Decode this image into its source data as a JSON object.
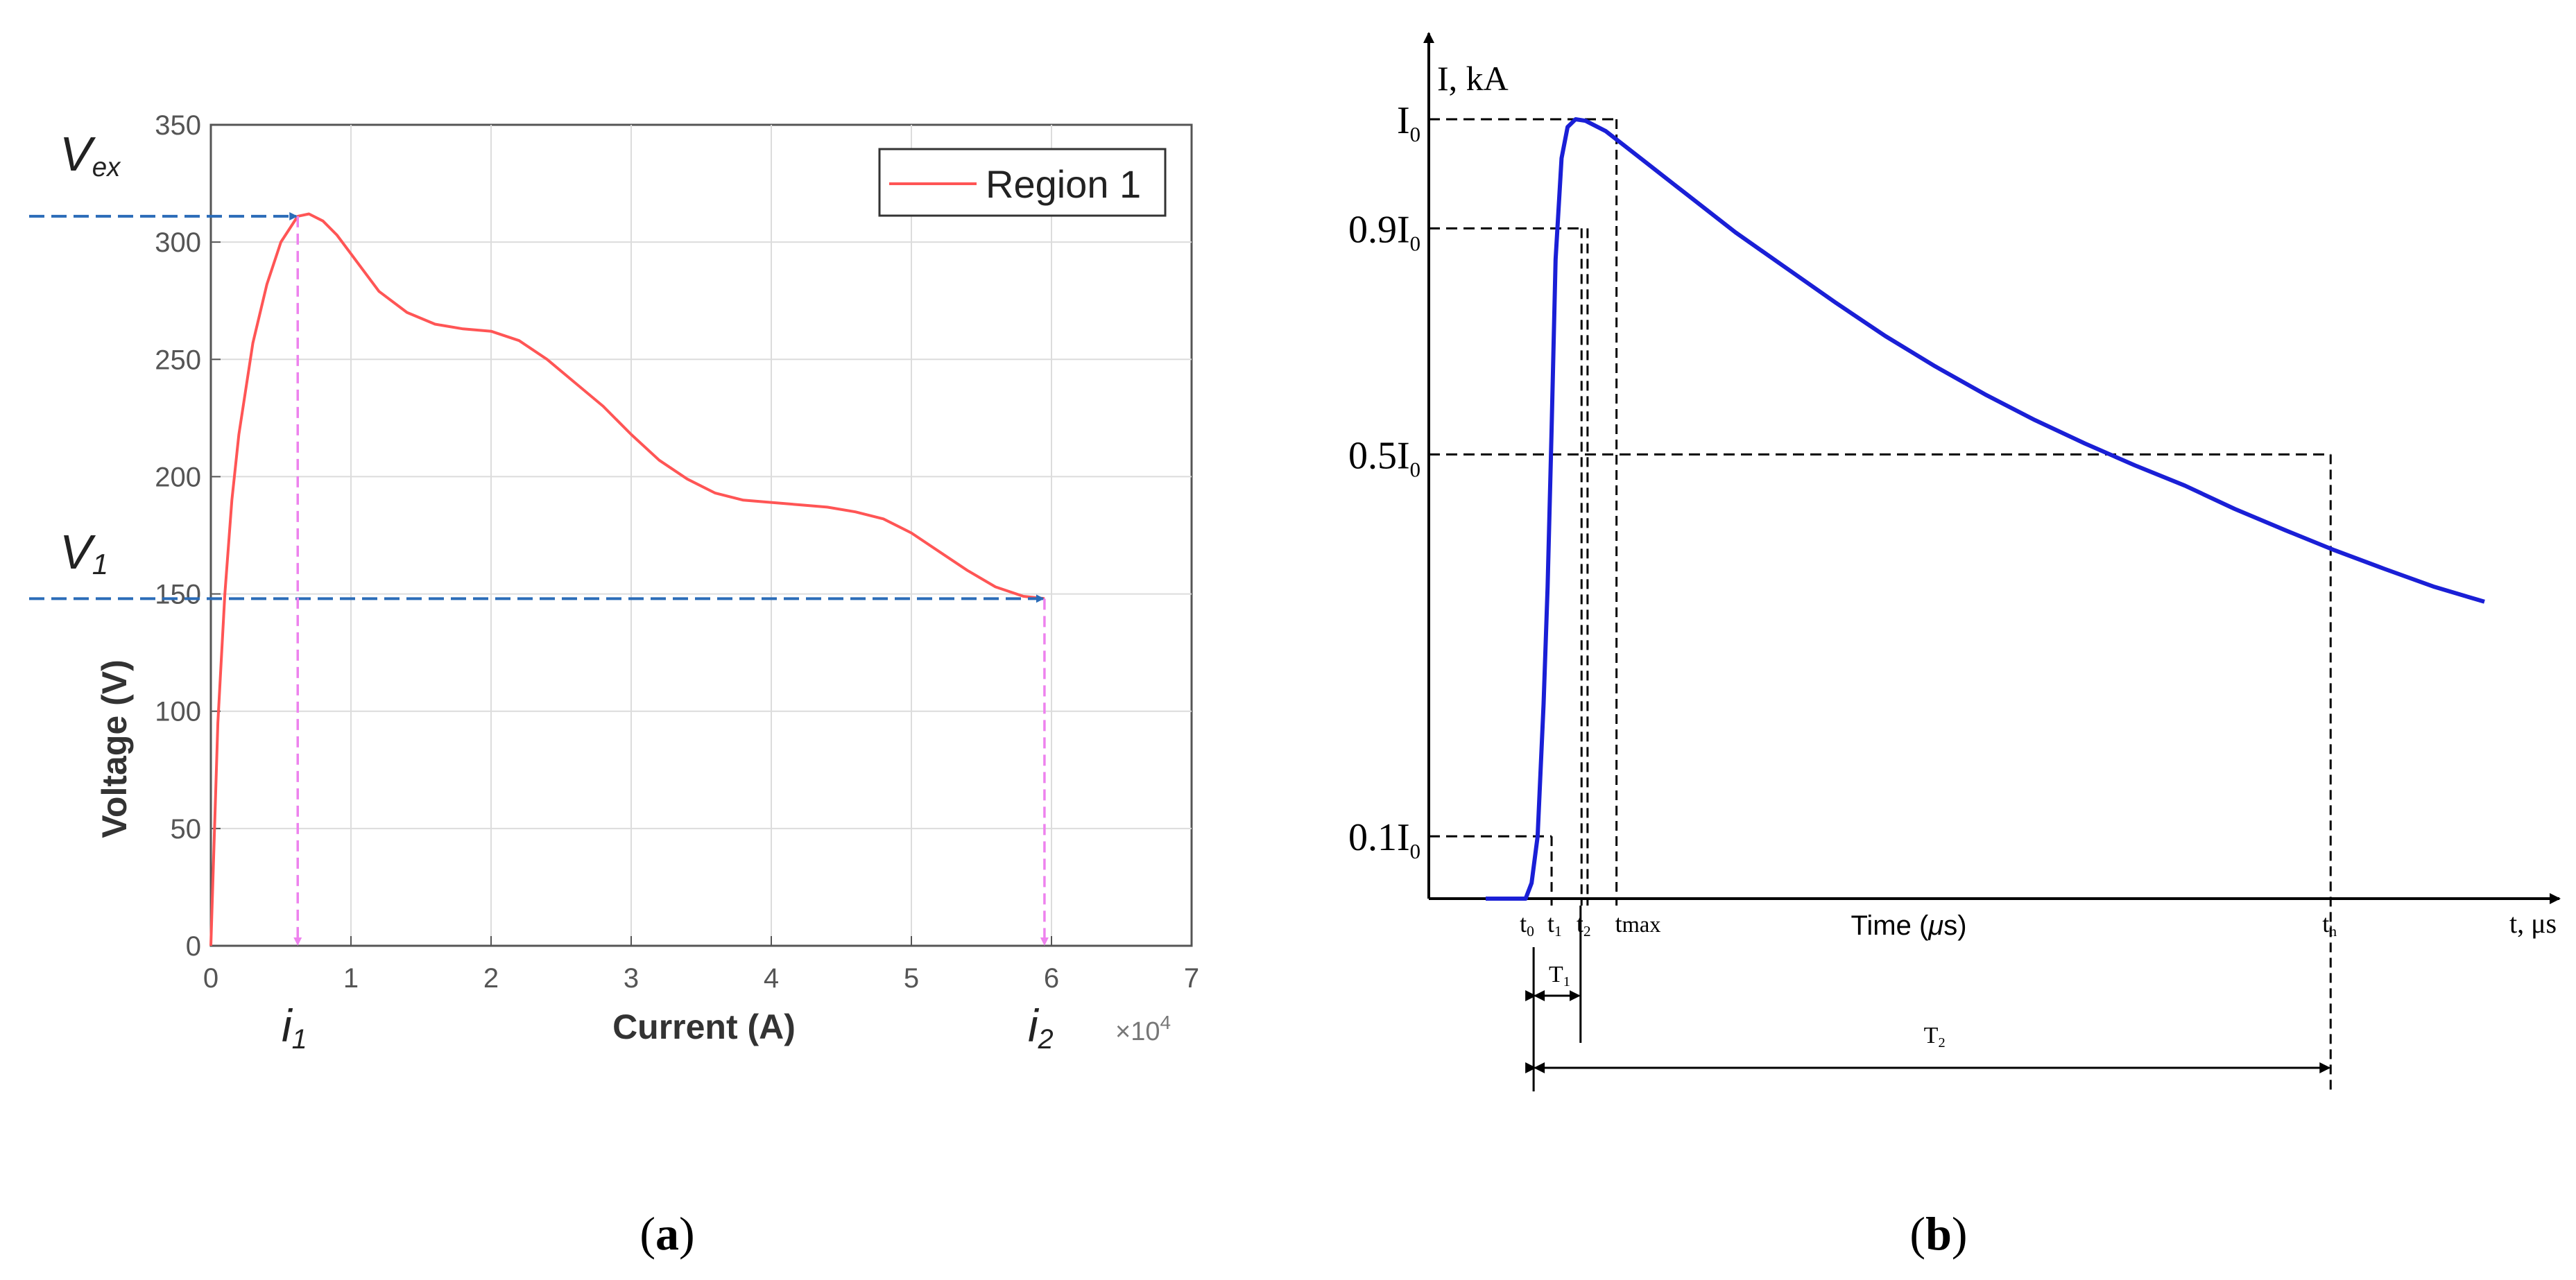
{
  "colors": {
    "curve_a": "#ff5555",
    "arrow_v": "#2b6cb8",
    "arrow_i": "#ee82ee",
    "curve_b": "#1a1fd6",
    "grid": "#dcdcdc",
    "axis": "#333333",
    "black": "#000000"
  },
  "chart_data": [
    {
      "id": "a",
      "type": "line",
      "caption": "a",
      "xlabel": "Current (A)",
      "ylabel": "Voltage (V)",
      "x_multiplier": "×10",
      "x_multiplier_exp": "4",
      "xlim": [
        0,
        7
      ],
      "ylim": [
        0,
        350
      ],
      "xticks": [
        0,
        1,
        2,
        3,
        4,
        5,
        6,
        7
      ],
      "yticks": [
        0,
        50,
        100,
        150,
        200,
        250,
        300,
        350
      ],
      "grid": true,
      "legend": {
        "position": "top-right",
        "label": "Region 1"
      },
      "series": [
        {
          "name": "Region 1",
          "x": [
            0,
            0.05,
            0.1,
            0.15,
            0.2,
            0.3,
            0.4,
            0.5,
            0.62,
            0.7,
            0.8,
            0.9,
            1.0,
            1.2,
            1.4,
            1.6,
            1.8,
            2.0,
            2.2,
            2.4,
            2.6,
            2.8,
            3.0,
            3.2,
            3.4,
            3.6,
            3.8,
            4.0,
            4.2,
            4.4,
            4.6,
            4.8,
            5.0,
            5.2,
            5.4,
            5.6,
            5.8,
            5.95
          ],
          "y": [
            0,
            95,
            150,
            190,
            218,
            257,
            282,
            300,
            311,
            312,
            309,
            303,
            295,
            279,
            270,
            265,
            263,
            262,
            258,
            250,
            240,
            230,
            218,
            207,
            199,
            193,
            190,
            189,
            188,
            187,
            185,
            182,
            176,
            168,
            160,
            153,
            149,
            148
          ]
        }
      ],
      "annotations": {
        "V_ex": {
          "label": "V",
          "sub": "ex",
          "value": 311,
          "at_x": 0.62
        },
        "V_1": {
          "label": "V",
          "sub": "1",
          "value": 148,
          "at_x": 5.95
        },
        "i_1": {
          "label": "i",
          "sub": "1",
          "value": 0.62
        },
        "i_2": {
          "label": "i",
          "sub": "2",
          "value": 5.95
        }
      }
    },
    {
      "id": "b",
      "type": "line",
      "caption": "b",
      "ylabel": "I, kA",
      "xlabel_mid": "Time (",
      "xlabel_mu": "μ",
      "xlabel_end": "s)",
      "xlabel_end_axis": "t, μs",
      "xlim": [
        0,
        1000
      ],
      "ylim": [
        0,
        1.1
      ],
      "series": [
        {
          "name": "I(t)",
          "x": [
            0,
            40,
            46,
            52,
            58,
            62,
            66,
            70,
            76,
            82,
            90,
            100,
            120,
            140,
            160,
            200,
            250,
            300,
            350,
            400,
            450,
            500,
            550,
            600,
            650,
            700,
            750,
            800,
            850,
            900,
            950,
            1000
          ],
          "y": [
            0,
            0,
            0.02,
            0.08,
            0.25,
            0.4,
            0.6,
            0.82,
            0.95,
            0.99,
            1.0,
            0.998,
            0.985,
            0.965,
            0.945,
            0.905,
            0.855,
            0.81,
            0.765,
            0.722,
            0.683,
            0.647,
            0.614,
            0.584,
            0.556,
            0.53,
            0.5,
            0.473,
            0.447,
            0.423,
            0.4,
            0.381
          ]
        }
      ],
      "levels": {
        "I0": {
          "label": "I",
          "sub": "0",
          "prefix": "",
          "value": 1.0
        },
        "p9": {
          "label": "I",
          "sub": "0",
          "prefix": "0.9",
          "value": 0.86
        },
        "p5": {
          "label": "I",
          "sub": "0",
          "prefix": "0.5",
          "value": 0.57
        },
        "p1": {
          "label": "I",
          "sub": "0",
          "prefix": "0.1",
          "value": 0.08
        }
      },
      "time_marks": {
        "t0": {
          "label": "t",
          "sub": "0",
          "value": 48
        },
        "t1": {
          "label": "t",
          "sub": "1",
          "value": 66
        },
        "t2": {
          "label": "t",
          "sub": "2",
          "value": 102
        },
        "tmax": {
          "label": "t",
          "sub": "max",
          "value": 131
        },
        "th": {
          "label": "t",
          "sub": "h",
          "value": 846
        }
      },
      "spans": {
        "T1": {
          "label": "T",
          "sub": "1",
          "from": 48,
          "to": 95
        },
        "T2": {
          "label": "T",
          "sub": "2",
          "from": 48,
          "to": 846
        }
      }
    }
  ]
}
